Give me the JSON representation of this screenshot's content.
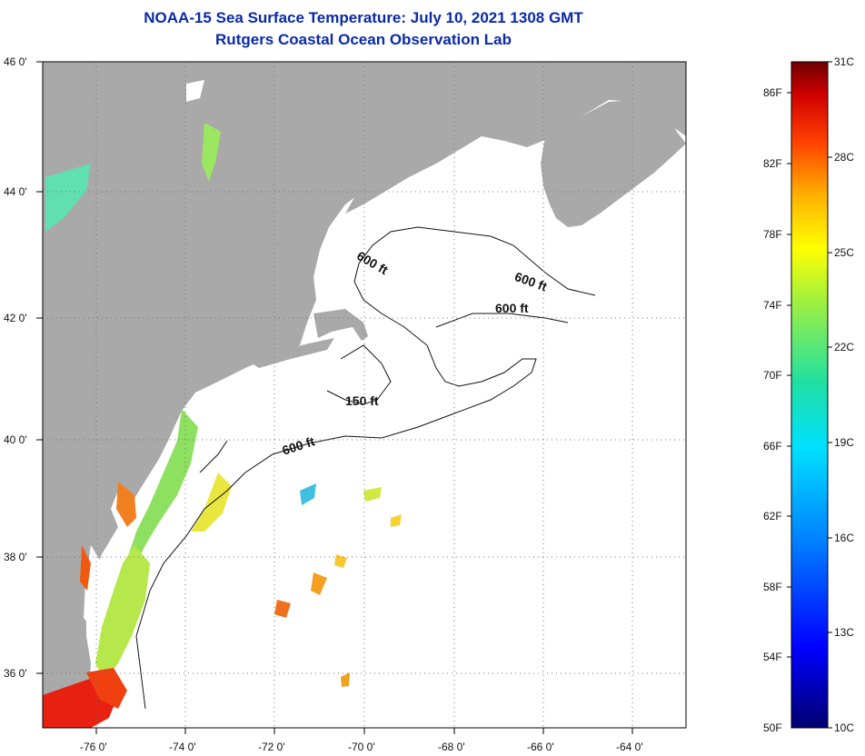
{
  "title": {
    "line1": "NOAA-15 Sea Surface Temperature:  July 10, 2021 1308 GMT",
    "line2": "Rutgers Coastal Ocean Observation Lab"
  },
  "axes": {
    "lat_labels": [
      "46 0'",
      "44 0'",
      "42 0'",
      "40 0'",
      "38 0'",
      "36 0'"
    ],
    "lon_labels": [
      "-76 0'",
      "-74 0'",
      "-72 0'",
      "-70 0'",
      "-68 0'",
      "-66 0'",
      "-64 0'"
    ]
  },
  "contours": [
    "600 ft",
    "600 ft",
    "600 ft",
    "150 ft",
    "600 ft"
  ],
  "colorbar": {
    "celsius": [
      "31C",
      "28C",
      "25C",
      "22C",
      "19C",
      "16C",
      "13C",
      "10C"
    ],
    "fahrenheit": [
      "86F",
      "82F",
      "78F",
      "74F",
      "70F",
      "66F",
      "62F",
      "58F",
      "54F",
      "50F"
    ]
  },
  "colors": {
    "land": "#a9a9a9",
    "title": "#0a2aa8"
  }
}
